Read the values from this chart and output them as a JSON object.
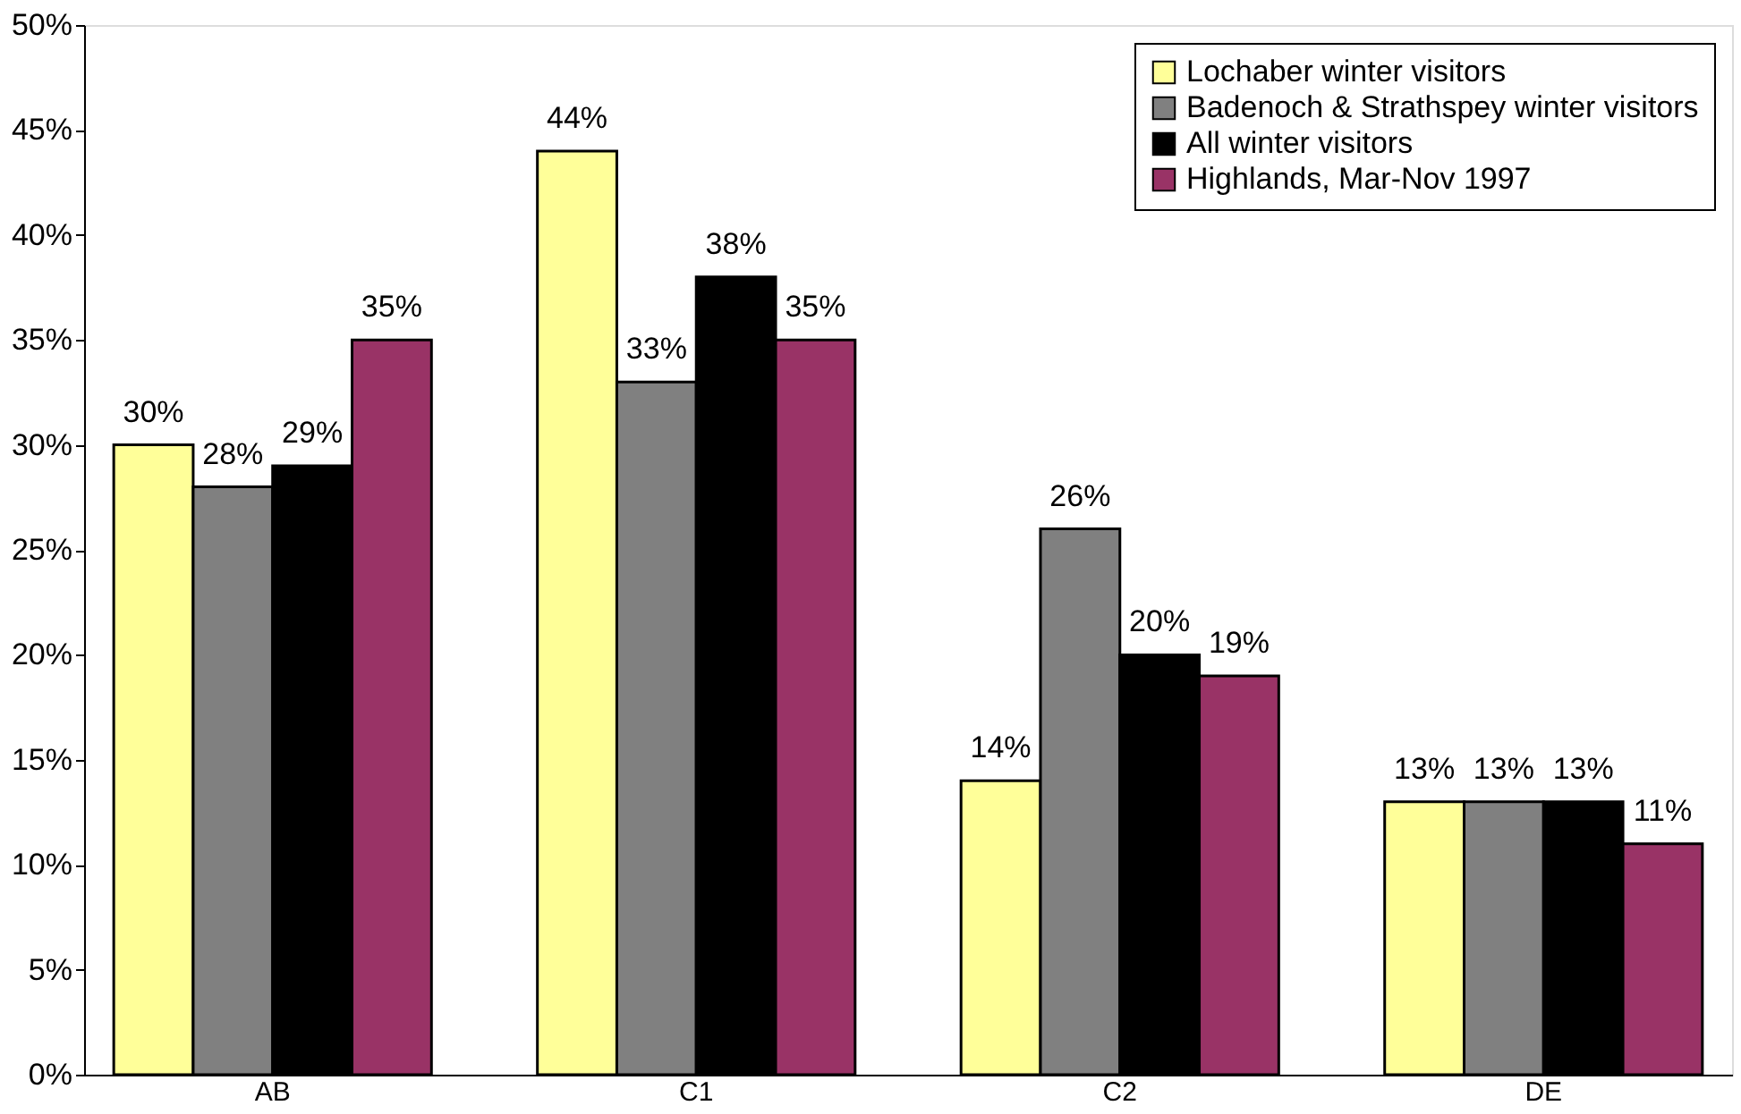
{
  "chart_data": {
    "type": "bar",
    "categories": [
      "AB",
      "C1",
      "C2",
      "DE"
    ],
    "series": [
      {
        "name": "Lochaber winter visitors",
        "color": "#ffff99",
        "values": [
          30,
          44,
          14,
          13
        ],
        "value_labels": [
          "30%",
          "44%",
          "14%",
          "13%"
        ]
      },
      {
        "name": "Badenoch & Strathspey winter visitors",
        "color": "#808080",
        "values": [
          28,
          33,
          26,
          13
        ],
        "value_labels": [
          "28%",
          "33%",
          "26%",
          "13%"
        ]
      },
      {
        "name": "All winter visitors",
        "color": "#000000",
        "values": [
          29,
          38,
          20,
          13
        ],
        "value_labels": [
          "29%",
          "38%",
          "20%",
          "13%"
        ]
      },
      {
        "name": "Highlands, Mar-Nov 1997",
        "color": "#993366",
        "values": [
          35,
          35,
          19,
          11
        ],
        "value_labels": [
          "35%",
          "35%",
          "19%",
          "11%"
        ]
      }
    ],
    "ylim": [
      0,
      50
    ],
    "yticks": [
      {
        "value": 0,
        "label": "0%"
      },
      {
        "value": 5,
        "label": "5%"
      },
      {
        "value": 10,
        "label": "10%"
      },
      {
        "value": 15,
        "label": "15%"
      },
      {
        "value": 20,
        "label": "20%"
      },
      {
        "value": 25,
        "label": "25%"
      },
      {
        "value": 30,
        "label": "30%"
      },
      {
        "value": 35,
        "label": "35%"
      },
      {
        "value": 40,
        "label": "40%"
      },
      {
        "value": 45,
        "label": "45%"
      },
      {
        "value": 50,
        "label": "50%"
      }
    ],
    "grid": false,
    "legend": "top right"
  }
}
